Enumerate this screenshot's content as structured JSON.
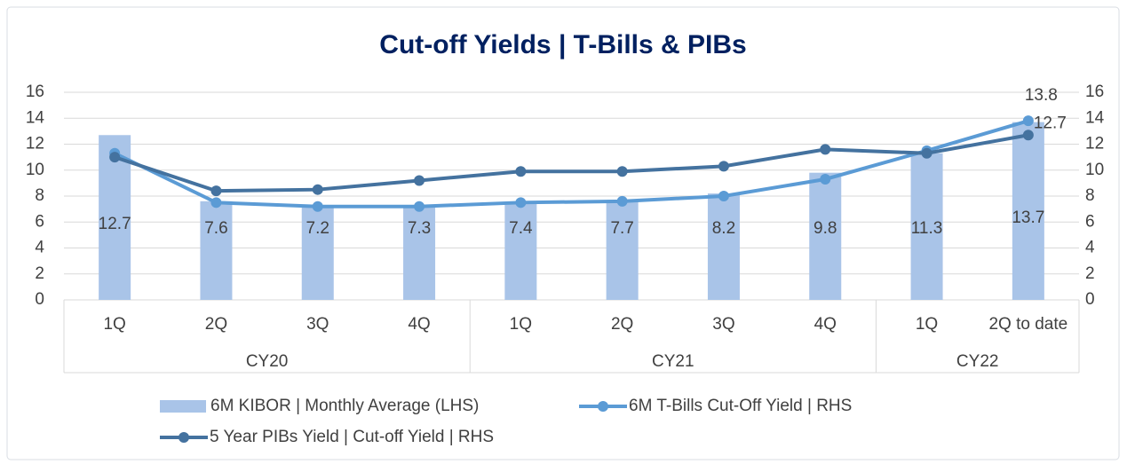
{
  "chart_data": {
    "type": "bar_line",
    "title": "Cut-off Yields | T-Bills & PIBs",
    "categories": [
      "1Q",
      "2Q",
      "3Q",
      "4Q",
      "1Q",
      "2Q",
      "3Q",
      "4Q",
      "1Q",
      "2Q to date"
    ],
    "groups": [
      {
        "name": "CY20",
        "span": 4
      },
      {
        "name": "CY21",
        "span": 4
      },
      {
        "name": "CY22",
        "span": 2
      }
    ],
    "series": [
      {
        "name": "6M KIBOR | Monthly Average (LHS)",
        "type": "bar",
        "color": "#a9c4e8",
        "axis": "y",
        "data_labels": "all",
        "values": [
          12.7,
          7.6,
          7.2,
          7.3,
          7.4,
          7.7,
          8.2,
          9.8,
          11.3,
          13.7
        ]
      },
      {
        "name": "6M T-Bills Cut-Off Yield | RHS",
        "type": "line",
        "color": "#5b9bd5",
        "axis": "y2",
        "data_labels": "last",
        "values": [
          11.3,
          7.5,
          7.2,
          7.2,
          7.5,
          7.6,
          8.0,
          9.3,
          11.5,
          13.8
        ]
      },
      {
        "name": "5 Year PIBs Yield | Cut-off Yield | RHS",
        "type": "line",
        "color": "#44729f",
        "axis": "y2",
        "data_labels": "last",
        "values": [
          11.0,
          8.4,
          8.5,
          9.2,
          9.9,
          9.9,
          10.3,
          11.6,
          11.3,
          12.7
        ]
      }
    ],
    "ylim": [
      0,
      16
    ],
    "yticks": [
      0,
      2,
      4,
      6,
      8,
      10,
      12,
      14,
      16
    ],
    "y2lim": [
      0,
      16
    ],
    "y2ticks": [
      0,
      2,
      4,
      6,
      8,
      10,
      12,
      14,
      16
    ],
    "grid": true
  }
}
